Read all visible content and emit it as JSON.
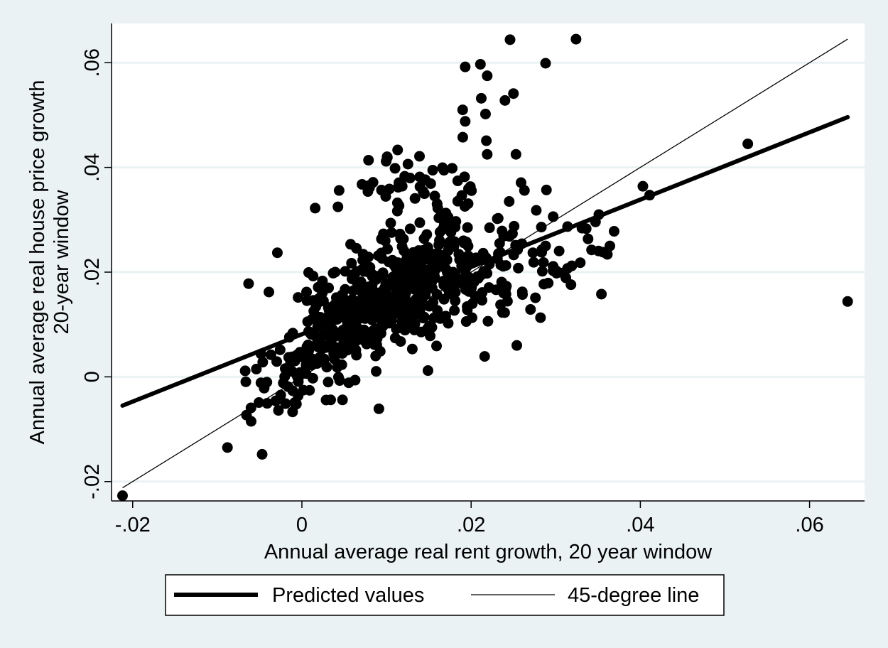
{
  "chart_data": {
    "type": "scatter",
    "xlabel": "Annual average real rent growth, 20 year window",
    "ylabel_lines": [
      "Annual average real house price growth",
      "20-year window"
    ],
    "xlim": [
      -0.0225,
      0.0665
    ],
    "ylim": [
      -0.0237,
      0.0675
    ],
    "x_ticks": [
      -0.02,
      0,
      0.02,
      0.04,
      0.06
    ],
    "x_tick_labels": [
      "-.02",
      "0",
      ".02",
      ".04",
      ".06"
    ],
    "y_ticks": [
      -0.02,
      0,
      0.02,
      0.04,
      0.06
    ],
    "y_tick_labels": [
      "-.02",
      "0",
      ".02",
      ".04",
      ".06"
    ],
    "grid": "horizontal",
    "legend_placement": "bottom",
    "colors": {
      "background": "#eaf2f3",
      "plot_background": "#ffffff",
      "gridline": "#eaf2f3",
      "marker": "#000000",
      "line": "#000000"
    },
    "series": [
      {
        "name": "",
        "kind": "scatter",
        "cluster_generation": {
          "seed": 7,
          "clusters": [
            {
              "n": 330,
              "cx": 0.009,
              "cy": 0.014,
              "sx": 0.0048,
              "sy": 0.0052,
              "rho": 0.35
            },
            {
              "n": 140,
              "cx": 0.016,
              "cy": 0.02,
              "sx": 0.0042,
              "sy": 0.0055,
              "rho": 0.3
            },
            {
              "n": 80,
              "cx": 0.003,
              "cy": 0.006,
              "sx": 0.0032,
              "sy": 0.0042,
              "rho": 0.3
            },
            {
              "n": 60,
              "cx": 0.013,
              "cy": 0.035,
              "sx": 0.005,
              "sy": 0.0042,
              "rho": 0.2
            },
            {
              "n": 60,
              "cx": 0.024,
              "cy": 0.02,
              "sx": 0.0045,
              "sy": 0.0045,
              "rho": 0.5
            },
            {
              "n": 30,
              "cx": -0.002,
              "cy": -0.002,
              "sx": 0.0025,
              "sy": 0.003,
              "rho": 0.3
            }
          ]
        },
        "points": [
          [
            -0.0212,
            -0.0227
          ],
          [
            -0.0088,
            -0.0135
          ],
          [
            -0.0047,
            -0.0148
          ],
          [
            -0.006,
            -0.0085
          ],
          [
            -0.0063,
            0.0178
          ],
          [
            -0.0039,
            0.0162
          ],
          [
            -0.0029,
            0.0237
          ],
          [
            0.0246,
            0.0644
          ],
          [
            0.0324,
            0.0645
          ],
          [
            0.0288,
            0.0599
          ],
          [
            0.0211,
            0.0597
          ],
          [
            0.0193,
            0.0592
          ],
          [
            0.0219,
            0.0575
          ],
          [
            0.025,
            0.0541
          ],
          [
            0.024,
            0.0528
          ],
          [
            0.0212,
            0.0532
          ],
          [
            0.019,
            0.051
          ],
          [
            0.0217,
            0.0502
          ],
          [
            0.0193,
            0.0488
          ],
          [
            0.0218,
            0.0451
          ],
          [
            0.0253,
            0.0425
          ],
          [
            0.0219,
            0.0425
          ],
          [
            0.0101,
            0.0419
          ],
          [
            0.0044,
            0.0356
          ],
          [
            0.0078,
            0.0354
          ],
          [
            0.0259,
            0.0371
          ],
          [
            0.0263,
            0.0356
          ],
          [
            0.0289,
            0.0357
          ],
          [
            0.0245,
            0.0335
          ],
          [
            0.0277,
            0.0318
          ],
          [
            0.0297,
            0.0306
          ],
          [
            0.0314,
            0.0287
          ],
          [
            0.0283,
            0.0286
          ],
          [
            0.0331,
            0.0284
          ],
          [
            0.0336,
            0.0283
          ],
          [
            0.0347,
            0.0296
          ],
          [
            0.0351,
            0.031
          ],
          [
            0.0369,
            0.0278
          ],
          [
            0.0364,
            0.025
          ],
          [
            0.0356,
            0.0238
          ],
          [
            0.0361,
            0.0234
          ],
          [
            0.0354,
            0.0158
          ],
          [
            0.0329,
            0.0218
          ],
          [
            0.0319,
            0.0212
          ],
          [
            0.0309,
            0.0198
          ],
          [
            0.0282,
            0.0113
          ],
          [
            0.0254,
            0.006
          ],
          [
            0.0216,
            0.0039
          ],
          [
            0.0403,
            0.0364
          ],
          [
            0.0411,
            0.0347
          ],
          [
            0.0527,
            0.0445
          ],
          [
            0.0645,
            0.0144
          ],
          [
            0.0091,
            -0.0061
          ],
          [
            0.0048,
            -0.0044
          ],
          [
            0.0034,
            -0.0044
          ],
          [
            -0.0011,
            -0.0067
          ],
          [
            -0.0031,
            -0.0046
          ],
          [
            0.0149,
            0.0012
          ],
          [
            0.0273,
            0.0237
          ],
          [
            0.0288,
            0.025
          ],
          [
            0.0297,
            0.0211
          ],
          [
            0.0301,
            0.0198
          ],
          [
            0.0312,
            0.0189
          ],
          [
            0.0318,
            0.0176
          ],
          [
            0.0286,
            0.0177
          ],
          [
            0.0276,
            0.0151
          ]
        ]
      },
      {
        "name": "Predicted values",
        "kind": "line",
        "width": "thick",
        "x": [
          -0.0212,
          0.0645
        ],
        "y": [
          -0.0055,
          0.0496
        ]
      },
      {
        "name": "45-degree line",
        "kind": "line",
        "width": "thin",
        "x": [
          -0.0212,
          0.0645
        ],
        "y": [
          -0.0212,
          0.0645
        ]
      }
    ]
  }
}
